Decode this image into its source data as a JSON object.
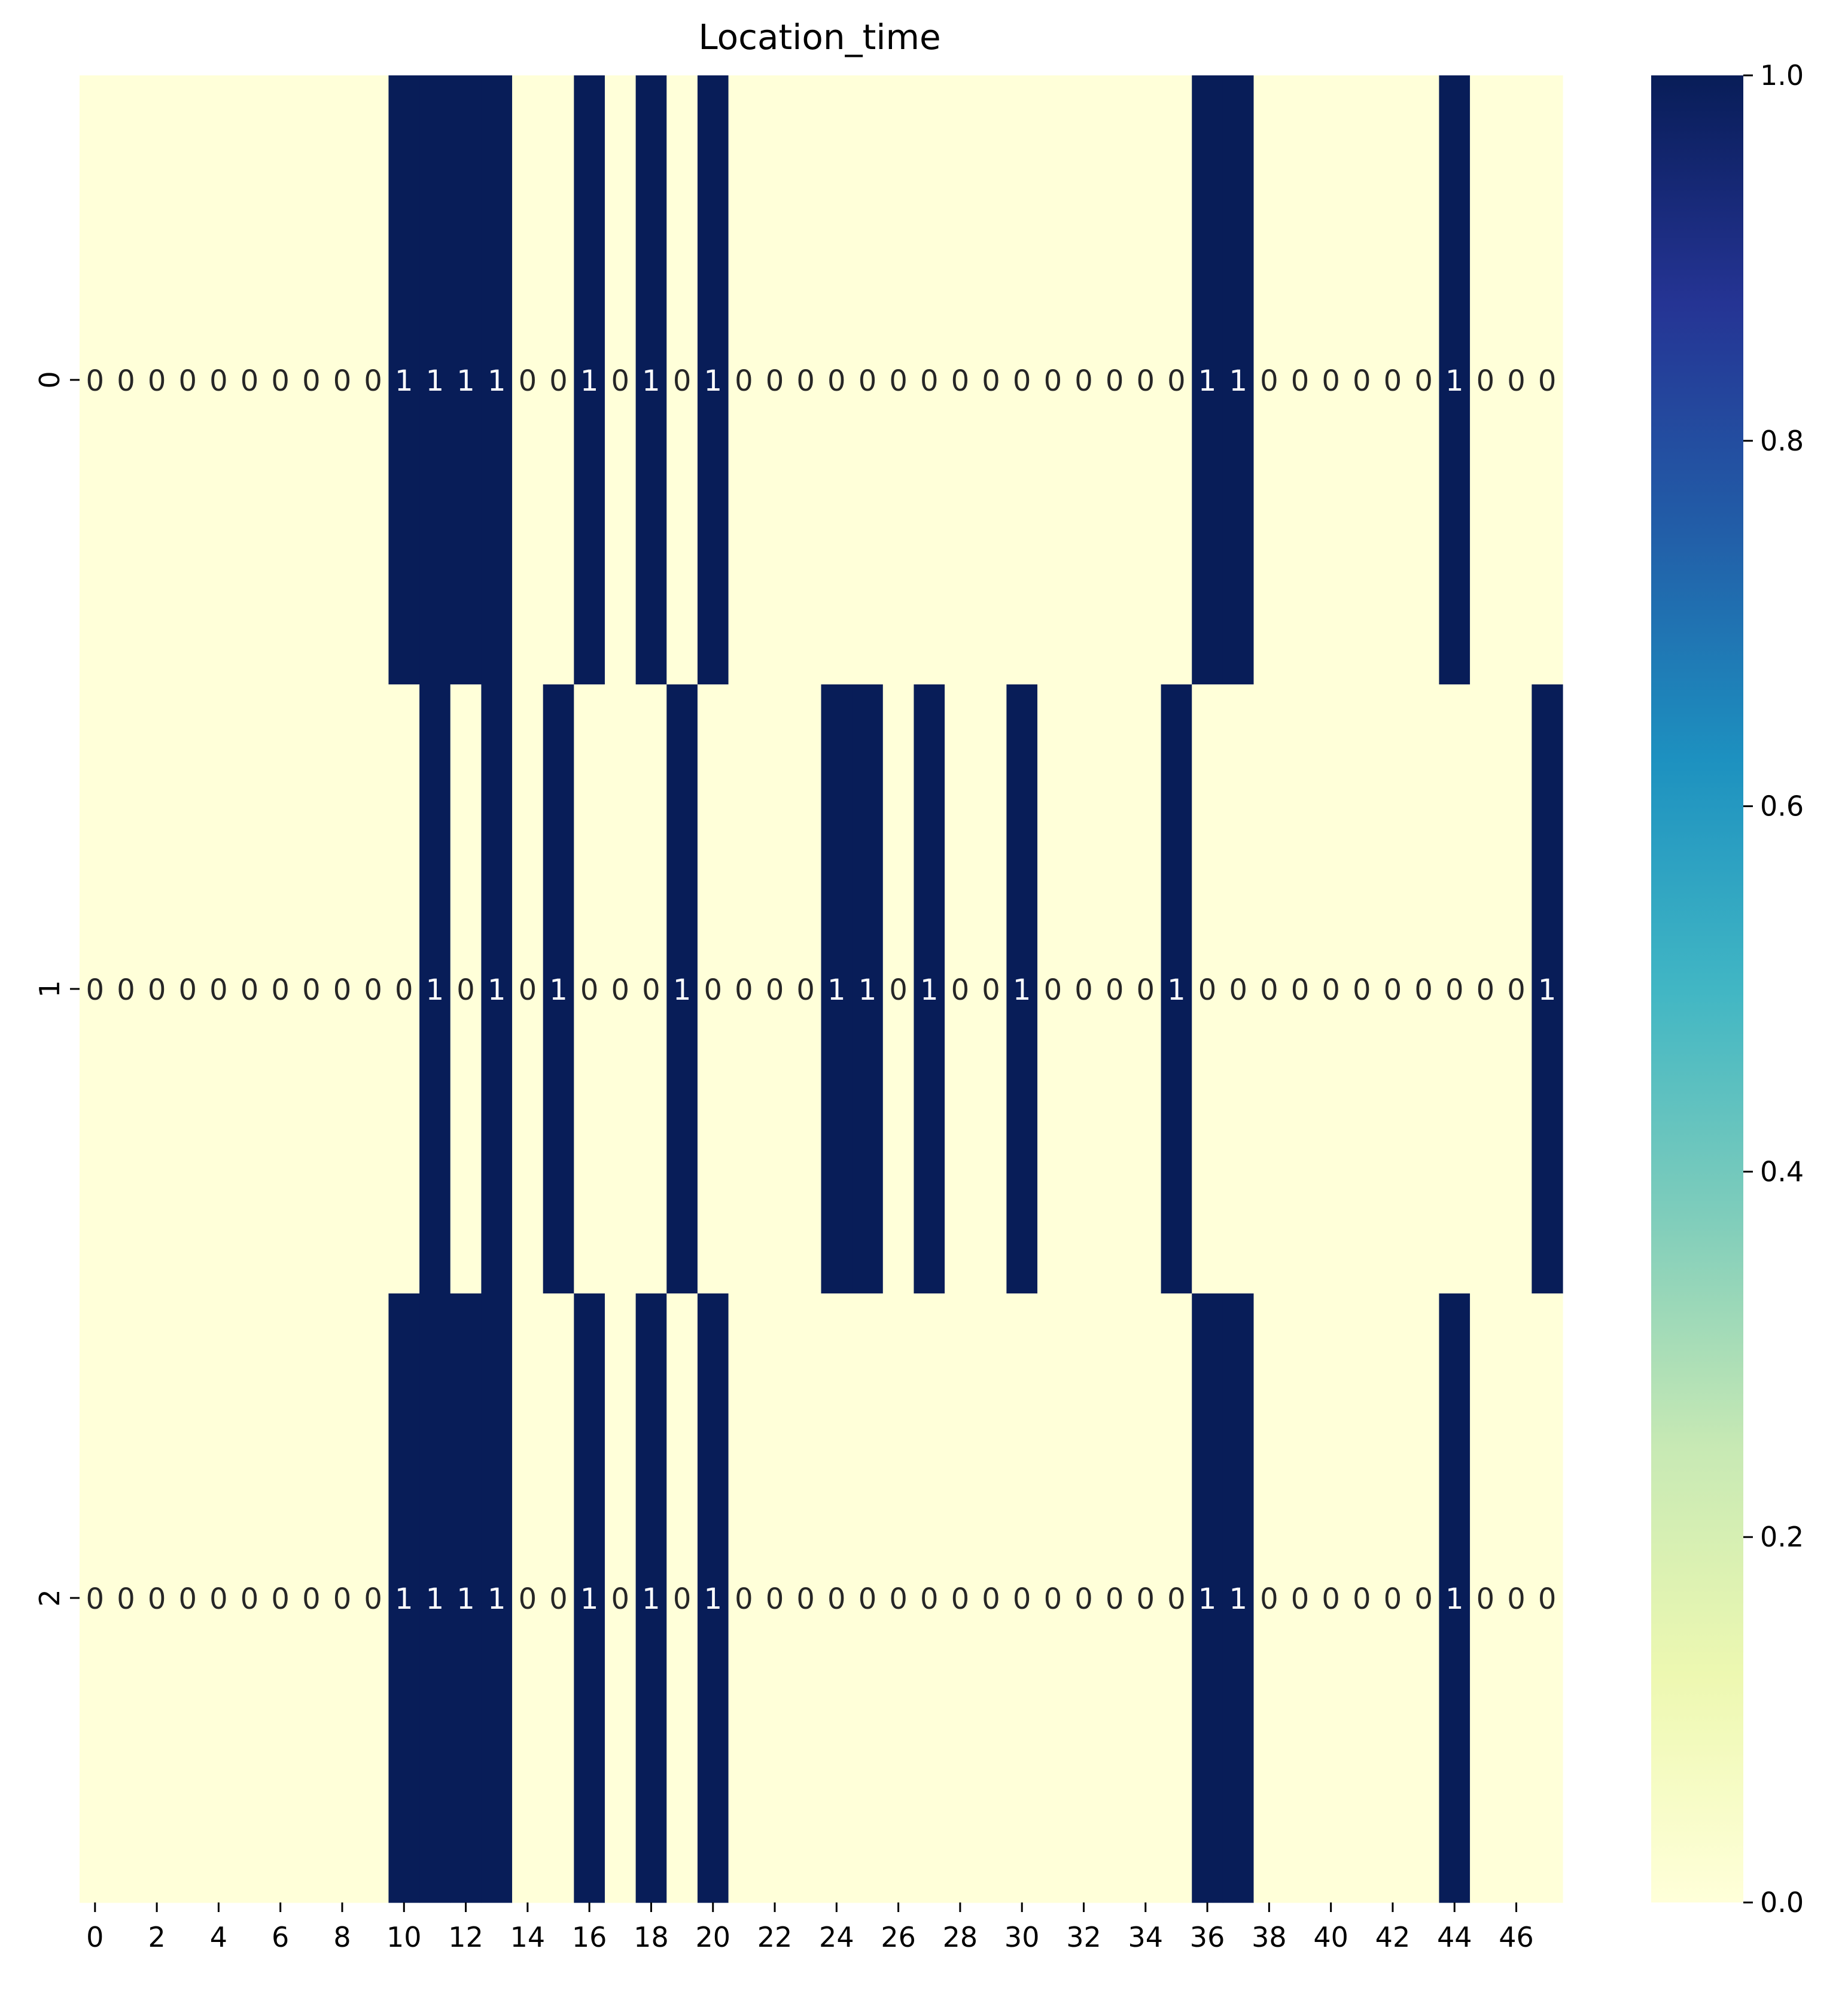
{
  "chart_data": {
    "type": "heatmap",
    "title": "Location_time",
    "xlabel": "",
    "ylabel": "",
    "x_tick_labels": [
      "0",
      "2",
      "4",
      "6",
      "8",
      "10",
      "12",
      "14",
      "16",
      "18",
      "20",
      "22",
      "24",
      "26",
      "28",
      "30",
      "32",
      "34",
      "36",
      "38",
      "40",
      "42",
      "44",
      "46"
    ],
    "y_tick_labels": [
      "0",
      "1",
      "2"
    ],
    "n_columns": 48,
    "values": [
      [
        0,
        0,
        0,
        0,
        0,
        0,
        0,
        0,
        0,
        0,
        1,
        1,
        1,
        1,
        0,
        0,
        1,
        0,
        1,
        0,
        1,
        0,
        0,
        0,
        0,
        0,
        0,
        0,
        0,
        0,
        0,
        0,
        0,
        0,
        0,
        0,
        1,
        1,
        0,
        0,
        0,
        0,
        0,
        0,
        1,
        0,
        0,
        0
      ],
      [
        0,
        0,
        0,
        0,
        0,
        0,
        0,
        0,
        0,
        0,
        0,
        1,
        0,
        1,
        0,
        1,
        0,
        0,
        0,
        1,
        0,
        0,
        0,
        0,
        1,
        1,
        0,
        1,
        0,
        0,
        1,
        0,
        0,
        0,
        0,
        1,
        0,
        0,
        0,
        0,
        0,
        0,
        0,
        0,
        0,
        0,
        0,
        1
      ],
      [
        0,
        0,
        0,
        0,
        0,
        0,
        0,
        0,
        0,
        0,
        1,
        1,
        1,
        1,
        0,
        0,
        1,
        0,
        1,
        0,
        1,
        0,
        0,
        0,
        0,
        0,
        0,
        0,
        0,
        0,
        0,
        0,
        0,
        0,
        0,
        0,
        1,
        1,
        0,
        0,
        0,
        0,
        0,
        0,
        1,
        0,
        0,
        0
      ]
    ],
    "annotations": true,
    "colormap": "YlGnBu",
    "vmin": 0.0,
    "vmax": 1.0,
    "colorbar_ticks": [
      "0.0",
      "0.2",
      "0.4",
      "0.6",
      "0.8",
      "1.0"
    ],
    "colors": {
      "low": "#ffffd9",
      "high": "#081d58",
      "annotation_on_low": "#262626",
      "annotation_on_high": "#ffffff",
      "gradient": [
        "#ffffd9",
        "#edf8b1",
        "#c7e9b4",
        "#7fcdbb",
        "#41b6c4",
        "#1d91c0",
        "#225ea8",
        "#253494",
        "#081d58"
      ]
    }
  }
}
